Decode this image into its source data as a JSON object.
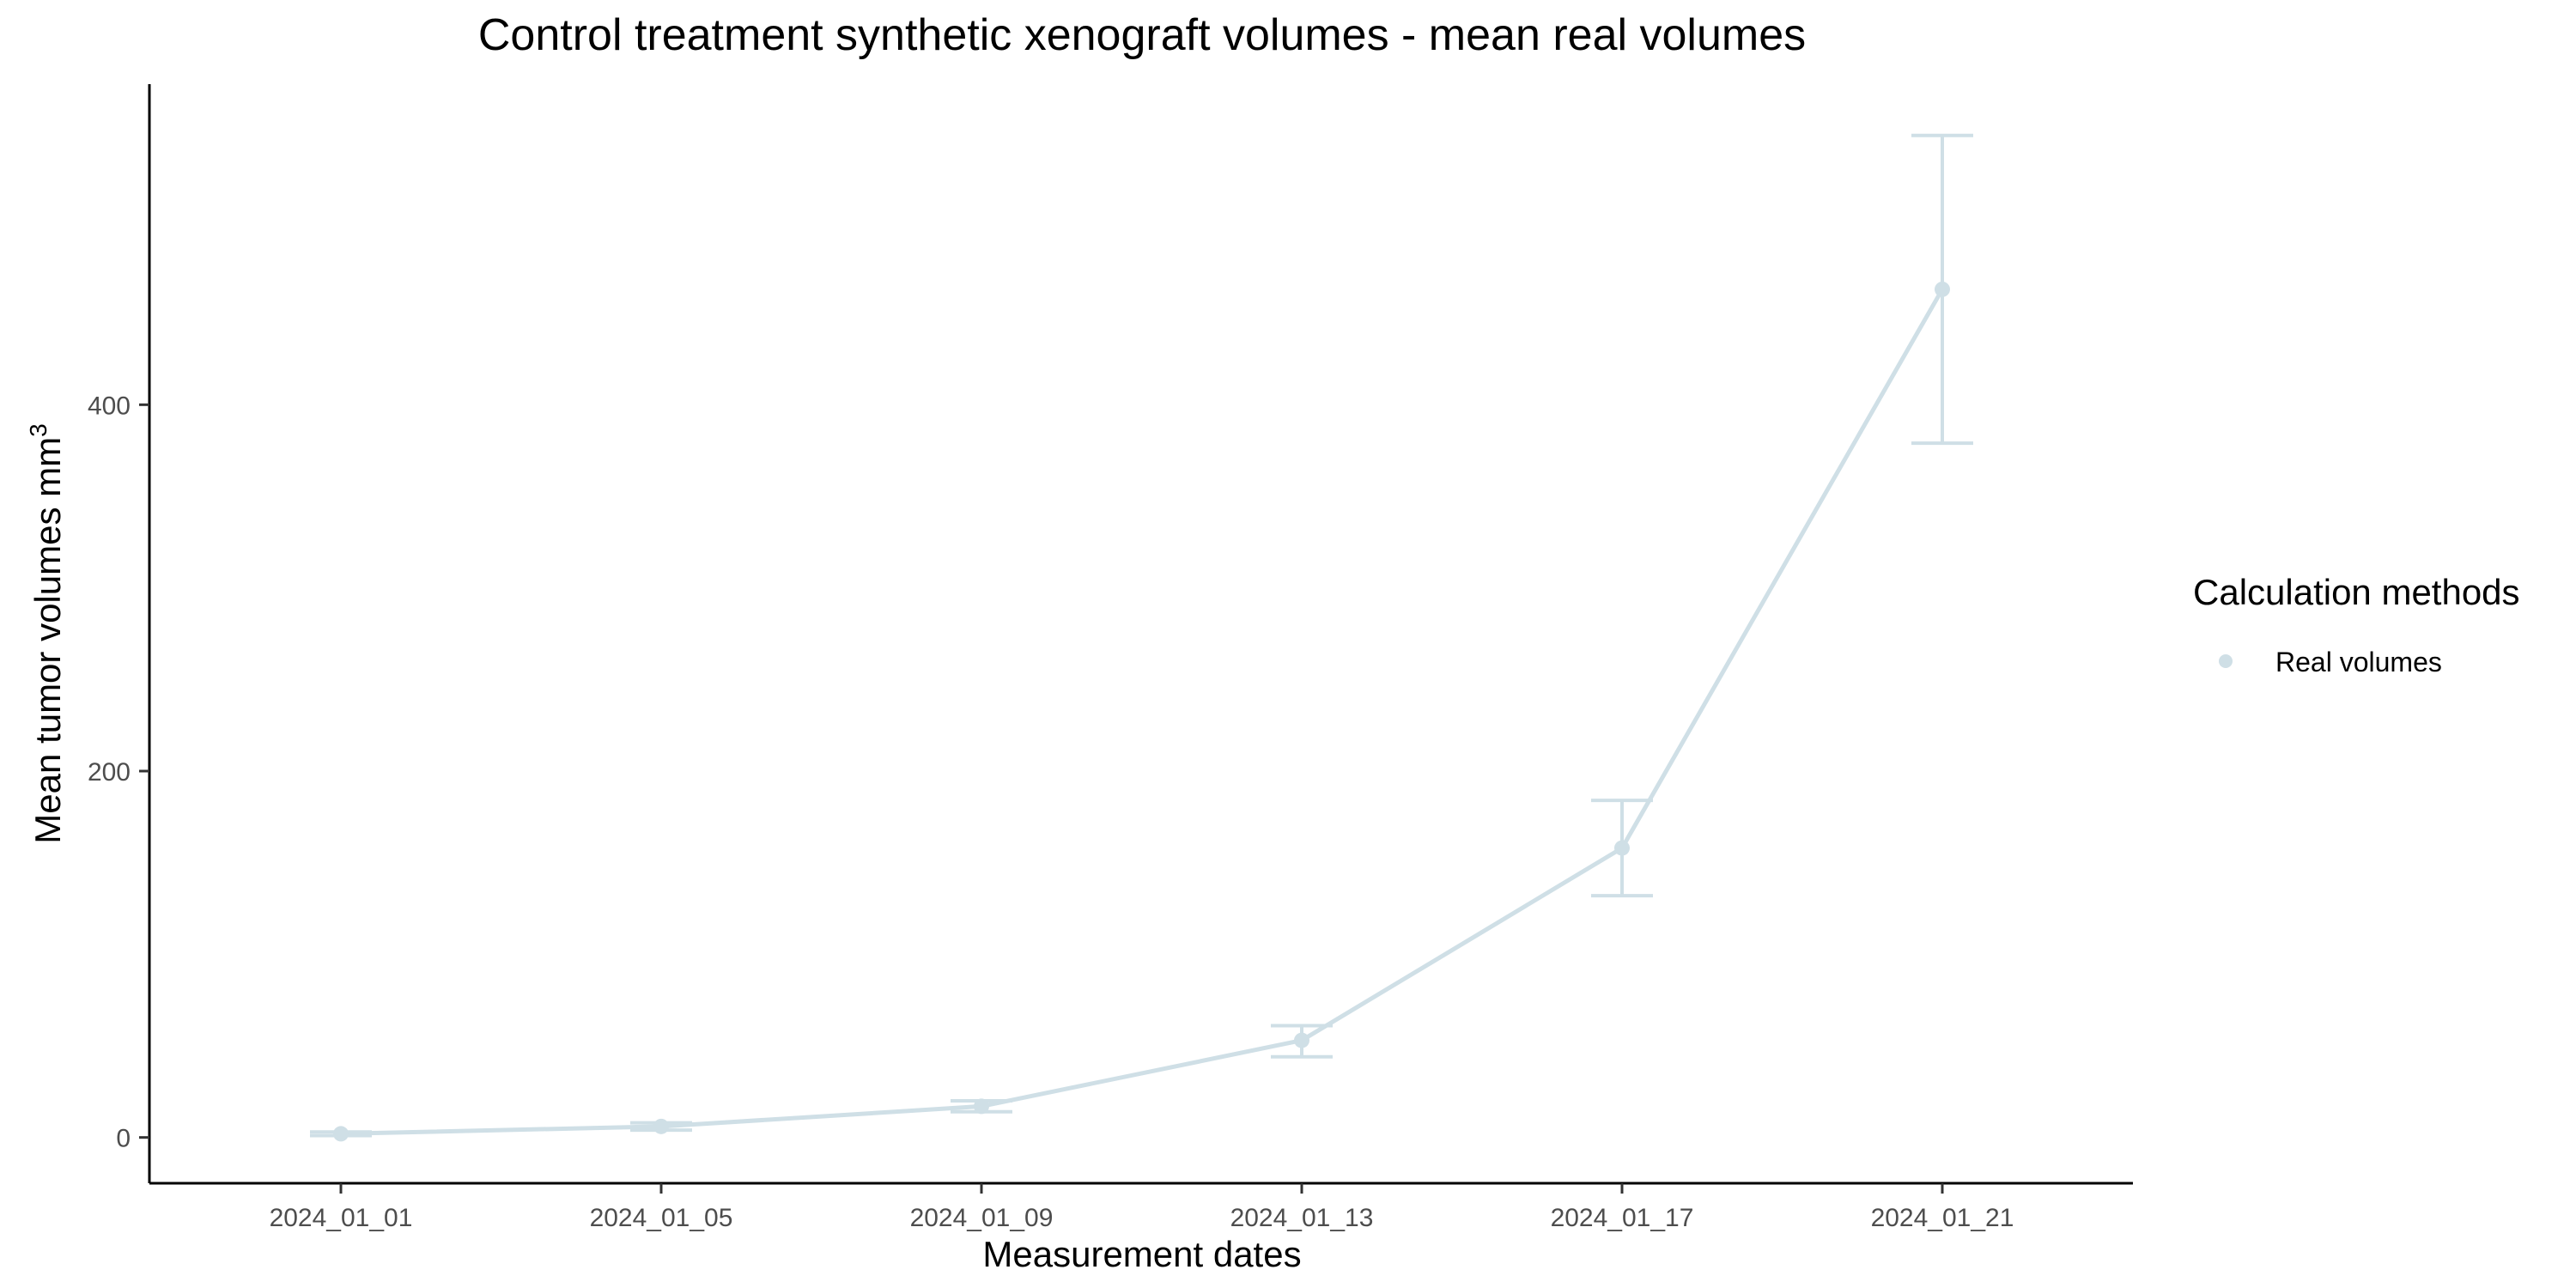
{
  "chart_data": {
    "type": "line",
    "title": "Control treatment synthetic xenograft volumes - mean real volumes",
    "xlabel": "Measurement dates",
    "ylabel": "Mean tumor volumes mm",
    "ylabel_superscript": "3",
    "categories": [
      "2024_01_01",
      "2024_01_05",
      "2024_01_09",
      "2024_01_13",
      "2024_01_17",
      "2024_01_21"
    ],
    "yticks": [
      0,
      200,
      400
    ],
    "ylim": [
      -25,
      575
    ],
    "grid": false,
    "legend": {
      "title": "Calculation methods",
      "placement": "right",
      "entries": [
        "Real volumes"
      ]
    },
    "series": [
      {
        "name": "Real volumes",
        "color": "#cfdfe6",
        "values": [
          2,
          6,
          17,
          53,
          158,
          463
        ],
        "error_low": [
          1,
          4,
          14,
          44,
          132,
          379
        ],
        "error_high": [
          3,
          8,
          20,
          61,
          184,
          547
        ]
      }
    ]
  }
}
